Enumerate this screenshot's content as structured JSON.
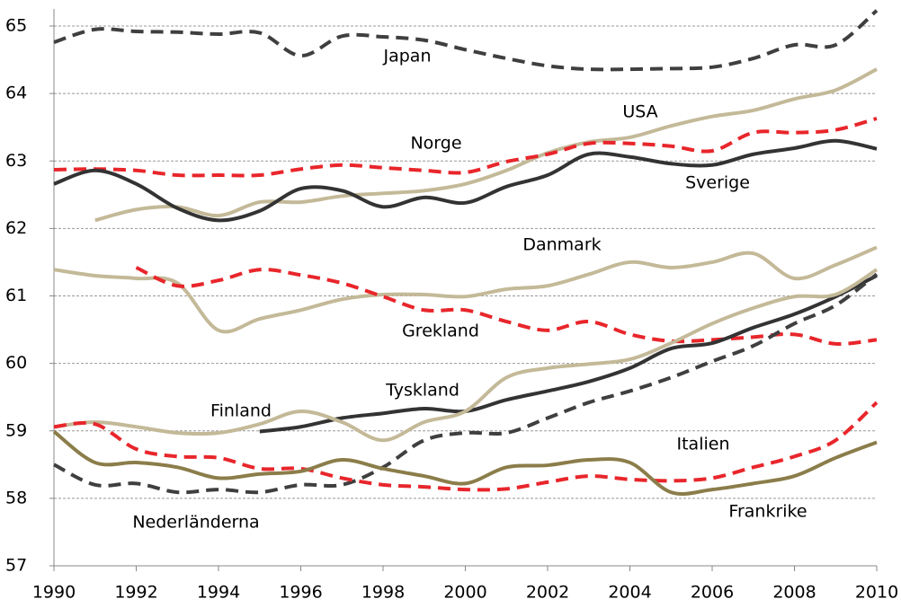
{
  "chart_data": {
    "type": "line",
    "x": [
      1990,
      1991,
      1992,
      1993,
      1994,
      1995,
      1996,
      1997,
      1998,
      1999,
      2000,
      2001,
      2002,
      2003,
      2004,
      2005,
      2006,
      2007,
      2008,
      2009,
      2010
    ],
    "xlim": [
      1990,
      2010
    ],
    "xticks": [
      1990,
      1992,
      1994,
      1996,
      1998,
      2000,
      2002,
      2004,
      2006,
      2008,
      2010
    ],
    "ylim": [
      57,
      65
    ],
    "yticks": [
      57,
      58,
      59,
      60,
      61,
      62,
      63,
      64,
      65
    ],
    "grid": true,
    "series": [
      {
        "name": "Japan",
        "color": "#3f3f3f",
        "line_style": "dashed",
        "values": [
          64.76,
          64.95,
          64.92,
          64.91,
          64.88,
          64.9,
          64.56,
          64.85,
          64.84,
          64.79,
          64.65,
          64.52,
          64.41,
          64.36,
          64.36,
          64.37,
          64.39,
          64.52,
          64.72,
          64.72,
          65.23
        ]
      },
      {
        "name": "USA",
        "color": "#c4b998",
        "line_style": "solid",
        "values": [
          null,
          62.12,
          62.28,
          62.32,
          62.19,
          62.39,
          62.39,
          62.48,
          62.52,
          62.56,
          62.66,
          62.86,
          63.12,
          63.28,
          63.35,
          63.52,
          63.66,
          63.75,
          63.92,
          64.05,
          64.36
        ]
      },
      {
        "name": "Norge",
        "color": "#e8262b",
        "line_style": "dashed",
        "values": [
          62.87,
          62.88,
          62.86,
          62.79,
          62.79,
          62.79,
          62.88,
          62.94,
          62.9,
          62.86,
          62.83,
          62.99,
          63.1,
          63.26,
          63.26,
          63.22,
          63.15,
          63.42,
          63.42,
          63.46,
          63.63
        ]
      },
      {
        "name": "Sverige",
        "color": "#333333",
        "line_style": "solid",
        "values": [
          62.66,
          62.86,
          62.66,
          62.3,
          62.12,
          62.26,
          62.59,
          62.56,
          62.32,
          62.46,
          62.38,
          62.62,
          62.79,
          63.1,
          63.06,
          62.96,
          62.94,
          63.1,
          63.19,
          63.3,
          63.18
        ]
      },
      {
        "name": "Danmark",
        "color": "#c4b998",
        "line_style": "solid",
        "values": [
          61.39,
          61.3,
          61.26,
          61.19,
          60.49,
          60.66,
          60.79,
          60.95,
          61.02,
          61.02,
          60.99,
          61.1,
          61.15,
          61.32,
          61.5,
          61.42,
          61.5,
          61.63,
          61.26,
          61.46,
          61.72
        ]
      },
      {
        "name": "Grekland",
        "color": "#e8262b",
        "line_style": "dashed",
        "values": [
          null,
          null,
          61.42,
          61.15,
          61.23,
          61.39,
          61.31,
          61.19,
          60.99,
          60.79,
          60.79,
          60.62,
          60.49,
          60.62,
          60.43,
          60.33,
          60.35,
          60.39,
          60.43,
          60.29,
          60.35
        ]
      },
      {
        "name": "Tyskland",
        "color": "#333333",
        "line_style": "solid",
        "values": [
          null,
          null,
          null,
          null,
          null,
          58.99,
          59.06,
          59.19,
          59.26,
          59.33,
          59.29,
          59.46,
          59.59,
          59.73,
          59.93,
          60.22,
          60.3,
          60.53,
          60.73,
          60.99,
          61.3
        ]
      },
      {
        "name": "Finland",
        "color": "#c4b998",
        "line_style": "solid",
        "values": [
          59.06,
          59.13,
          59.06,
          58.97,
          58.97,
          59.1,
          59.29,
          59.13,
          58.86,
          59.13,
          59.29,
          59.79,
          59.93,
          59.99,
          60.06,
          60.3,
          60.59,
          60.82,
          60.99,
          61.02,
          61.39
        ]
      },
      {
        "name": "Nederländerna",
        "color": "#3f3f3f",
        "line_style": "dashed",
        "values": [
          58.5,
          58.2,
          58.22,
          58.09,
          58.13,
          58.09,
          58.2,
          58.2,
          58.46,
          58.86,
          58.97,
          58.97,
          59.19,
          59.42,
          59.59,
          59.79,
          60.03,
          60.26,
          60.59,
          60.86,
          61.32
        ]
      },
      {
        "name": "Italien",
        "color": "#e8262b",
        "line_style": "dashed",
        "values": [
          59.06,
          59.1,
          58.73,
          58.62,
          58.6,
          58.44,
          58.44,
          58.3,
          58.2,
          58.17,
          58.13,
          58.14,
          58.24,
          58.33,
          58.28,
          58.26,
          58.3,
          58.46,
          58.62,
          58.86,
          59.42
        ]
      },
      {
        "name": "Frankrike",
        "color": "#8b7d4a",
        "line_style": "solid",
        "values": [
          58.99,
          58.53,
          58.53,
          58.46,
          58.3,
          58.36,
          58.4,
          58.57,
          58.44,
          58.33,
          58.22,
          58.46,
          58.49,
          58.57,
          58.53,
          58.09,
          58.13,
          58.22,
          58.33,
          58.6,
          58.83
        ]
      }
    ]
  }
}
